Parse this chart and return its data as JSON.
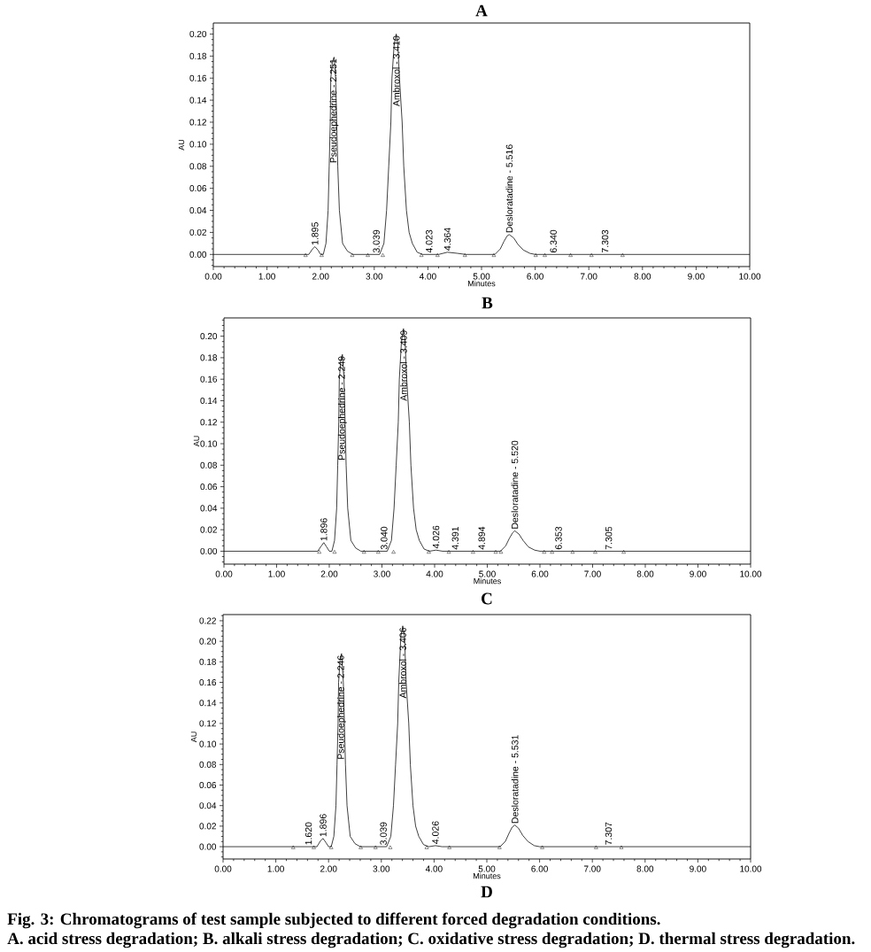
{
  "chart_data": [
    {
      "type": "line",
      "title": "A",
      "xlabel": "Minutes",
      "ylabel": "AU",
      "xlim": [
        0,
        10
      ],
      "ylim": [
        -0.011,
        0.21
      ],
      "xticks": [
        {
          "value": 0,
          "label": "0.00"
        },
        {
          "value": 0.2,
          "label": null
        },
        {
          "value": 0.4,
          "label": null
        },
        {
          "value": 0.6,
          "label": null
        },
        {
          "value": 0.8,
          "label": null
        },
        {
          "value": 1,
          "label": "1.00"
        },
        {
          "value": 1.2,
          "label": null
        },
        {
          "value": 1.4,
          "label": null
        },
        {
          "value": 1.6,
          "label": null
        },
        {
          "value": 1.8,
          "label": null
        },
        {
          "value": 2,
          "label": "2.00"
        },
        {
          "value": 2.2,
          "label": null
        },
        {
          "value": 2.4,
          "label": null
        },
        {
          "value": 2.6,
          "label": null
        },
        {
          "value": 2.8,
          "label": null
        },
        {
          "value": 3,
          "label": "3.00"
        },
        {
          "value": 3.2,
          "label": null
        },
        {
          "value": 3.4,
          "label": null
        },
        {
          "value": 3.6,
          "label": null
        },
        {
          "value": 3.8,
          "label": null
        },
        {
          "value": 4,
          "label": "4.00"
        },
        {
          "value": 4.2,
          "label": null
        },
        {
          "value": 4.4,
          "label": null
        },
        {
          "value": 4.6,
          "label": null
        },
        {
          "value": 4.8,
          "label": null
        },
        {
          "value": 5,
          "label": "5.00"
        },
        {
          "value": 5.2,
          "label": null
        },
        {
          "value": 5.4,
          "label": null
        },
        {
          "value": 5.6,
          "label": null
        },
        {
          "value": 5.8,
          "label": null
        },
        {
          "value": 6,
          "label": "6.00"
        },
        {
          "value": 6.2,
          "label": null
        },
        {
          "value": 6.4,
          "label": null
        },
        {
          "value": 6.6,
          "label": null
        },
        {
          "value": 6.8,
          "label": null
        },
        {
          "value": 7,
          "label": "7.00"
        },
        {
          "value": 7.2,
          "label": null
        },
        {
          "value": 7.4,
          "label": null
        },
        {
          "value": 7.6,
          "label": null
        },
        {
          "value": 7.8,
          "label": null
        },
        {
          "value": 8,
          "label": "8.00"
        },
        {
          "value": 8.2,
          "label": null
        },
        {
          "value": 8.4,
          "label": null
        },
        {
          "value": 8.6,
          "label": null
        },
        {
          "value": 8.8,
          "label": null
        },
        {
          "value": 9,
          "label": "9.00"
        },
        {
          "value": 9.2,
          "label": null
        },
        {
          "value": 9.4,
          "label": null
        },
        {
          "value": 9.6,
          "label": null
        },
        {
          "value": 9.8,
          "label": null
        },
        {
          "value": 10,
          "label": "10.00"
        }
      ],
      "yticks": [
        {
          "value": -0.01,
          "label": null
        },
        {
          "value": -0.005,
          "label": null
        },
        {
          "value": 0,
          "label": "0.00"
        },
        {
          "value": 0.005,
          "label": null
        },
        {
          "value": 0.01,
          "label": null
        },
        {
          "value": 0.015,
          "label": null
        },
        {
          "value": 0.02,
          "label": "0.02"
        },
        {
          "value": 0.025,
          "label": null
        },
        {
          "value": 0.03,
          "label": null
        },
        {
          "value": 0.035,
          "label": null
        },
        {
          "value": 0.04,
          "label": "0.04"
        },
        {
          "value": 0.045,
          "label": null
        },
        {
          "value": 0.05,
          "label": null
        },
        {
          "value": 0.055,
          "label": null
        },
        {
          "value": 0.06,
          "label": "0.06"
        },
        {
          "value": 0.065,
          "label": null
        },
        {
          "value": 0.07,
          "label": null
        },
        {
          "value": 0.075,
          "label": null
        },
        {
          "value": 0.08,
          "label": "0.08"
        },
        {
          "value": 0.085,
          "label": null
        },
        {
          "value": 0.09,
          "label": null
        },
        {
          "value": 0.095,
          "label": null
        },
        {
          "value": 0.1,
          "label": "0.10"
        },
        {
          "value": 0.105,
          "label": null
        },
        {
          "value": 0.11,
          "label": null
        },
        {
          "value": 0.115,
          "label": null
        },
        {
          "value": 0.12,
          "label": "0.12"
        },
        {
          "value": 0.125,
          "label": null
        },
        {
          "value": 0.13,
          "label": null
        },
        {
          "value": 0.135,
          "label": null
        },
        {
          "value": 0.14,
          "label": "0.14"
        },
        {
          "value": 0.145,
          "label": null
        },
        {
          "value": 0.15,
          "label": null
        },
        {
          "value": 0.155,
          "label": null
        },
        {
          "value": 0.16,
          "label": "0.16"
        },
        {
          "value": 0.165,
          "label": null
        },
        {
          "value": 0.17,
          "label": null
        },
        {
          "value": 0.175,
          "label": null
        },
        {
          "value": 0.18,
          "label": "0.18"
        },
        {
          "value": 0.185,
          "label": null
        },
        {
          "value": 0.19,
          "label": null
        },
        {
          "value": 0.195,
          "label": null
        },
        {
          "value": 0.2,
          "label": "0.20"
        },
        {
          "value": 0.205,
          "label": null
        }
      ],
      "series": [
        {
          "color": "#000000",
          "x": [
            0,
            1.78,
            1.85,
            1.895,
            1.95,
            2.0,
            2.05,
            2.1,
            2.14,
            2.16,
            2.18,
            2.19,
            2.22,
            2.251,
            2.28,
            2.3,
            2.32,
            2.35,
            2.41,
            2.5,
            2.6,
            3.039,
            3.1,
            3.18,
            3.23,
            3.27,
            3.31,
            3.33,
            3.37,
            3.41,
            3.44,
            3.47,
            3.52,
            3.55,
            3.6,
            3.65,
            3.71,
            3.8,
            3.9,
            4.023,
            4.2,
            4.364,
            4.55,
            4.7,
            5.25,
            5.35,
            5.42,
            5.48,
            5.516,
            5.6,
            5.68,
            5.78,
            5.9,
            6.0,
            6.34,
            7.303,
            10
          ],
          "values": [
            0,
            0,
            0.005,
            0.007,
            0.004,
            0,
            0,
            0.01,
            0.04,
            0.08,
            0.12,
            0.16,
            0.175,
            0.179,
            0.16,
            0.12,
            0.08,
            0.04,
            0.01,
            0.003,
            0,
            0,
            0,
            0.01,
            0.04,
            0.08,
            0.12,
            0.16,
            0.19,
            0.2,
            0.19,
            0.16,
            0.12,
            0.08,
            0.04,
            0.02,
            0.01,
            0.002,
            0,
            0,
            0,
            0.002,
            0.001,
            0,
            0,
            0.005,
            0.012,
            0.017,
            0.018,
            0.015,
            0.009,
            0.004,
            0.001,
            0,
            0,
            0,
            0
          ]
        },
        {
          "type": "scatter",
          "marker": "triangle",
          "color": "#000000",
          "x": [
            1.72,
            2.02,
            2.59,
            2.88,
            3.16,
            3.88,
            4.18,
            4.69,
            5.23,
            6.01,
            6.18,
            6.66,
            7.05,
            7.63
          ],
          "values": [
            -0.001,
            -0.001,
            -0.001,
            -0.001,
            -0.001,
            -0.001,
            -0.001,
            -0.001,
            -0.001,
            -0.001,
            -0.001,
            -0.001,
            -0.001,
            -0.001
          ]
        }
      ],
      "annotations": [
        {
          "text": "1.895",
          "x": 1.895,
          "y": 0.007
        },
        {
          "text": "Pseudoephedrine - 2.251",
          "x": 2.251,
          "y": 0.179
        },
        {
          "text": "3.039",
          "x": 3.039,
          "y": 0
        },
        {
          "text": "Ambroxol - 3.410",
          "x": 3.41,
          "y": 0.2
        },
        {
          "text": "4.023",
          "x": 4.023,
          "y": 0
        },
        {
          "text": "4.364",
          "x": 4.364,
          "y": 0.002
        },
        {
          "text": "Desloratadine - 5.516",
          "x": 5.516,
          "y": 0.018
        },
        {
          "text": "6.340",
          "x": 6.34,
          "y": 0
        },
        {
          "text": "7.303",
          "x": 7.303,
          "y": 0
        }
      ]
    },
    {
      "type": "line",
      "title": "B",
      "xlabel": "Minutes",
      "ylabel": "AU",
      "xlim": [
        0,
        10
      ],
      "ylim": [
        -0.012,
        0.217
      ],
      "xticks": [
        {
          "value": 0,
          "label": "0.00"
        },
        {
          "value": 0.2,
          "label": null
        },
        {
          "value": 0.4,
          "label": null
        },
        {
          "value": 0.6,
          "label": null
        },
        {
          "value": 0.8,
          "label": null
        },
        {
          "value": 1,
          "label": "1.00"
        },
        {
          "value": 1.2,
          "label": null
        },
        {
          "value": 1.4,
          "label": null
        },
        {
          "value": 1.6,
          "label": null
        },
        {
          "value": 1.8,
          "label": null
        },
        {
          "value": 2,
          "label": "2.00"
        },
        {
          "value": 2.2,
          "label": null
        },
        {
          "value": 2.4,
          "label": null
        },
        {
          "value": 2.6,
          "label": null
        },
        {
          "value": 2.8,
          "label": null
        },
        {
          "value": 3,
          "label": "3.00"
        },
        {
          "value": 3.2,
          "label": null
        },
        {
          "value": 3.4,
          "label": null
        },
        {
          "value": 3.6,
          "label": null
        },
        {
          "value": 3.8,
          "label": null
        },
        {
          "value": 4,
          "label": "4.00"
        },
        {
          "value": 4.2,
          "label": null
        },
        {
          "value": 4.4,
          "label": null
        },
        {
          "value": 4.6,
          "label": null
        },
        {
          "value": 4.8,
          "label": null
        },
        {
          "value": 5,
          "label": "5.00"
        },
        {
          "value": 5.2,
          "label": null
        },
        {
          "value": 5.4,
          "label": null
        },
        {
          "value": 5.6,
          "label": null
        },
        {
          "value": 5.8,
          "label": null
        },
        {
          "value": 6,
          "label": "6.00"
        },
        {
          "value": 6.2,
          "label": null
        },
        {
          "value": 6.4,
          "label": null
        },
        {
          "value": 6.6,
          "label": null
        },
        {
          "value": 6.8,
          "label": null
        },
        {
          "value": 7,
          "label": "7.00"
        },
        {
          "value": 7.2,
          "label": null
        },
        {
          "value": 7.4,
          "label": null
        },
        {
          "value": 7.6,
          "label": null
        },
        {
          "value": 7.8,
          "label": null
        },
        {
          "value": 8,
          "label": "8.00"
        },
        {
          "value": 8.2,
          "label": null
        },
        {
          "value": 8.4,
          "label": null
        },
        {
          "value": 8.6,
          "label": null
        },
        {
          "value": 8.8,
          "label": null
        },
        {
          "value": 9,
          "label": "9.00"
        },
        {
          "value": 9.2,
          "label": null
        },
        {
          "value": 9.4,
          "label": null
        },
        {
          "value": 9.6,
          "label": null
        },
        {
          "value": 9.8,
          "label": null
        },
        {
          "value": 10,
          "label": "10.00"
        }
      ],
      "yticks": [
        {
          "value": -0.01,
          "label": null
        },
        {
          "value": -0.005,
          "label": null
        },
        {
          "value": 0,
          "label": "0.00"
        },
        {
          "value": 0.005,
          "label": null
        },
        {
          "value": 0.01,
          "label": null
        },
        {
          "value": 0.015,
          "label": null
        },
        {
          "value": 0.02,
          "label": "0.02"
        },
        {
          "value": 0.025,
          "label": null
        },
        {
          "value": 0.03,
          "label": null
        },
        {
          "value": 0.035,
          "label": null
        },
        {
          "value": 0.04,
          "label": "0.04"
        },
        {
          "value": 0.045,
          "label": null
        },
        {
          "value": 0.05,
          "label": null
        },
        {
          "value": 0.055,
          "label": null
        },
        {
          "value": 0.06,
          "label": "0.06"
        },
        {
          "value": 0.065,
          "label": null
        },
        {
          "value": 0.07,
          "label": null
        },
        {
          "value": 0.075,
          "label": null
        },
        {
          "value": 0.08,
          "label": "0.08"
        },
        {
          "value": 0.085,
          "label": null
        },
        {
          "value": 0.09,
          "label": null
        },
        {
          "value": 0.095,
          "label": null
        },
        {
          "value": 0.1,
          "label": "0.10"
        },
        {
          "value": 0.105,
          "label": null
        },
        {
          "value": 0.11,
          "label": null
        },
        {
          "value": 0.115,
          "label": null
        },
        {
          "value": 0.12,
          "label": "0.12"
        },
        {
          "value": 0.125,
          "label": null
        },
        {
          "value": 0.13,
          "label": null
        },
        {
          "value": 0.135,
          "label": null
        },
        {
          "value": 0.14,
          "label": "0.14"
        },
        {
          "value": 0.145,
          "label": null
        },
        {
          "value": 0.15,
          "label": null
        },
        {
          "value": 0.155,
          "label": null
        },
        {
          "value": 0.16,
          "label": "0.16"
        },
        {
          "value": 0.165,
          "label": null
        },
        {
          "value": 0.17,
          "label": null
        },
        {
          "value": 0.175,
          "label": null
        },
        {
          "value": 0.18,
          "label": "0.18"
        },
        {
          "value": 0.185,
          "label": null
        },
        {
          "value": 0.19,
          "label": null
        },
        {
          "value": 0.195,
          "label": null
        },
        {
          "value": 0.2,
          "label": "0.20"
        },
        {
          "value": 0.205,
          "label": null
        },
        {
          "value": 0.21,
          "label": null
        },
        {
          "value": 0.215,
          "label": null
        }
      ],
      "series": [
        {
          "color": "#000000",
          "x": [
            0,
            1.78,
            1.85,
            1.896,
            1.95,
            2.0,
            2.05,
            2.1,
            2.14,
            2.16,
            2.18,
            2.19,
            2.22,
            2.249,
            2.28,
            2.3,
            2.32,
            2.35,
            2.41,
            2.5,
            2.6,
            3.04,
            3.1,
            3.18,
            3.23,
            3.27,
            3.31,
            3.33,
            3.37,
            3.409,
            3.44,
            3.47,
            3.52,
            3.55,
            3.6,
            3.65,
            3.71,
            3.8,
            3.9,
            4.026,
            4.15,
            4.391,
            4.894,
            5.25,
            5.35,
            5.42,
            5.48,
            5.52,
            5.6,
            5.68,
            5.78,
            5.9,
            6.0,
            6.353,
            7.305,
            10
          ],
          "values": [
            0,
            0,
            0.005,
            0.008,
            0.004,
            0,
            0,
            0.01,
            0.04,
            0.08,
            0.12,
            0.16,
            0.178,
            0.183,
            0.16,
            0.12,
            0.08,
            0.04,
            0.01,
            0.003,
            0,
            0,
            0,
            0.01,
            0.04,
            0.08,
            0.12,
            0.16,
            0.195,
            0.207,
            0.195,
            0.16,
            0.12,
            0.08,
            0.04,
            0.02,
            0.01,
            0.002,
            0,
            0.001,
            0,
            0,
            0,
            0,
            0.005,
            0.012,
            0.017,
            0.019,
            0.016,
            0.01,
            0.004,
            0.001,
            0,
            0,
            0,
            0
          ]
        },
        {
          "type": "scatter",
          "marker": "triangle",
          "color": "#000000",
          "x": [
            1.81,
            2.1,
            2.66,
            2.93,
            3.22,
            3.89,
            4.27,
            4.73,
            5.16,
            5.26,
            6.08,
            6.23,
            6.62,
            7.05,
            7.59
          ],
          "values": [
            -0.001,
            -0.001,
            -0.001,
            -0.001,
            -0.001,
            -0.001,
            -0.001,
            -0.001,
            -0.001,
            -0.001,
            -0.001,
            -0.001,
            -0.001,
            -0.001,
            -0.001
          ]
        }
      ],
      "annotations": [
        {
          "text": "1.896",
          "x": 1.896,
          "y": 0.008
        },
        {
          "text": "Pseudoephedrine - 2.249",
          "x": 2.249,
          "y": 0.183
        },
        {
          "text": "3.040",
          "x": 3.04,
          "y": 0
        },
        {
          "text": "Ambroxol - 3.409",
          "x": 3.409,
          "y": 0.207
        },
        {
          "text": "4.026",
          "x": 4.026,
          "y": 0.001
        },
        {
          "text": "4.391",
          "x": 4.391,
          "y": 0
        },
        {
          "text": "4.894",
          "x": 4.894,
          "y": 0
        },
        {
          "text": "Desloratadine - 5.520",
          "x": 5.52,
          "y": 0.019
        },
        {
          "text": "6.353",
          "x": 6.353,
          "y": 0
        },
        {
          "text": "7.305",
          "x": 7.305,
          "y": 0
        }
      ]
    },
    {
      "type": "line",
      "title": "C",
      "xlabel": "Minutes",
      "ylabel": "AU",
      "xlim": [
        0,
        10
      ],
      "ylim": [
        -0.012,
        0.226
      ],
      "xticks": [
        {
          "value": 0,
          "label": "0.00"
        },
        {
          "value": 0.2,
          "label": null
        },
        {
          "value": 0.4,
          "label": null
        },
        {
          "value": 0.6,
          "label": null
        },
        {
          "value": 0.8,
          "label": null
        },
        {
          "value": 1,
          "label": "1.00"
        },
        {
          "value": 1.2,
          "label": null
        },
        {
          "value": 1.4,
          "label": null
        },
        {
          "value": 1.6,
          "label": null
        },
        {
          "value": 1.8,
          "label": null
        },
        {
          "value": 2,
          "label": "2.00"
        },
        {
          "value": 2.2,
          "label": null
        },
        {
          "value": 2.4,
          "label": null
        },
        {
          "value": 2.6,
          "label": null
        },
        {
          "value": 2.8,
          "label": null
        },
        {
          "value": 3,
          "label": "3.00"
        },
        {
          "value": 3.2,
          "label": null
        },
        {
          "value": 3.4,
          "label": null
        },
        {
          "value": 3.6,
          "label": null
        },
        {
          "value": 3.8,
          "label": null
        },
        {
          "value": 4,
          "label": "4.00"
        },
        {
          "value": 4.2,
          "label": null
        },
        {
          "value": 4.4,
          "label": null
        },
        {
          "value": 4.6,
          "label": null
        },
        {
          "value": 4.8,
          "label": null
        },
        {
          "value": 5,
          "label": "5.00"
        },
        {
          "value": 5.2,
          "label": null
        },
        {
          "value": 5.4,
          "label": null
        },
        {
          "value": 5.6,
          "label": null
        },
        {
          "value": 5.8,
          "label": null
        },
        {
          "value": 6,
          "label": "6.00"
        },
        {
          "value": 6.2,
          "label": null
        },
        {
          "value": 6.4,
          "label": null
        },
        {
          "value": 6.6,
          "label": null
        },
        {
          "value": 6.8,
          "label": null
        },
        {
          "value": 7,
          "label": "7.00"
        },
        {
          "value": 7.2,
          "label": null
        },
        {
          "value": 7.4,
          "label": null
        },
        {
          "value": 7.6,
          "label": null
        },
        {
          "value": 7.8,
          "label": null
        },
        {
          "value": 8,
          "label": "8.00"
        },
        {
          "value": 8.2,
          "label": null
        },
        {
          "value": 8.4,
          "label": null
        },
        {
          "value": 8.6,
          "label": null
        },
        {
          "value": 8.8,
          "label": null
        },
        {
          "value": 9,
          "label": "9.00"
        },
        {
          "value": 9.2,
          "label": null
        },
        {
          "value": 9.4,
          "label": null
        },
        {
          "value": 9.6,
          "label": null
        },
        {
          "value": 9.8,
          "label": null
        },
        {
          "value": 10,
          "label": "10.00"
        }
      ],
      "yticks": [
        {
          "value": -0.01,
          "label": null
        },
        {
          "value": -0.005,
          "label": null
        },
        {
          "value": 0,
          "label": "0.00"
        },
        {
          "value": 0.005,
          "label": null
        },
        {
          "value": 0.01,
          "label": null
        },
        {
          "value": 0.015,
          "label": null
        },
        {
          "value": 0.02,
          "label": "0.02"
        },
        {
          "value": 0.025,
          "label": null
        },
        {
          "value": 0.03,
          "label": null
        },
        {
          "value": 0.035,
          "label": null
        },
        {
          "value": 0.04,
          "label": "0.04"
        },
        {
          "value": 0.045,
          "label": null
        },
        {
          "value": 0.05,
          "label": null
        },
        {
          "value": 0.055,
          "label": null
        },
        {
          "value": 0.06,
          "label": "0.06"
        },
        {
          "value": 0.065,
          "label": null
        },
        {
          "value": 0.07,
          "label": null
        },
        {
          "value": 0.075,
          "label": null
        },
        {
          "value": 0.08,
          "label": "0.08"
        },
        {
          "value": 0.085,
          "label": null
        },
        {
          "value": 0.09,
          "label": null
        },
        {
          "value": 0.095,
          "label": null
        },
        {
          "value": 0.1,
          "label": "0.10"
        },
        {
          "value": 0.105,
          "label": null
        },
        {
          "value": 0.11,
          "label": null
        },
        {
          "value": 0.115,
          "label": null
        },
        {
          "value": 0.12,
          "label": "0.12"
        },
        {
          "value": 0.125,
          "label": null
        },
        {
          "value": 0.13,
          "label": null
        },
        {
          "value": 0.135,
          "label": null
        },
        {
          "value": 0.14,
          "label": "0.14"
        },
        {
          "value": 0.145,
          "label": null
        },
        {
          "value": 0.15,
          "label": null
        },
        {
          "value": 0.155,
          "label": null
        },
        {
          "value": 0.16,
          "label": "0.16"
        },
        {
          "value": 0.165,
          "label": null
        },
        {
          "value": 0.17,
          "label": null
        },
        {
          "value": 0.175,
          "label": null
        },
        {
          "value": 0.18,
          "label": "0.18"
        },
        {
          "value": 0.185,
          "label": null
        },
        {
          "value": 0.19,
          "label": null
        },
        {
          "value": 0.195,
          "label": null
        },
        {
          "value": 0.2,
          "label": "0.20"
        },
        {
          "value": 0.205,
          "label": null
        },
        {
          "value": 0.21,
          "label": null
        },
        {
          "value": 0.215,
          "label": null
        },
        {
          "value": 0.22,
          "label": "0.22"
        },
        {
          "value": 0.225,
          "label": null
        }
      ],
      "series": [
        {
          "color": "#000000",
          "x": [
            0,
            1.62,
            1.78,
            1.85,
            1.896,
            1.95,
            2.0,
            2.05,
            2.1,
            2.14,
            2.16,
            2.18,
            2.19,
            2.22,
            2.246,
            2.28,
            2.3,
            2.32,
            2.35,
            2.41,
            2.5,
            2.6,
            3.039,
            3.1,
            3.18,
            3.23,
            3.27,
            3.31,
            3.33,
            3.37,
            3.406,
            3.44,
            3.47,
            3.52,
            3.55,
            3.6,
            3.65,
            3.71,
            3.8,
            3.9,
            4.026,
            4.15,
            5.25,
            5.35,
            5.42,
            5.48,
            5.531,
            5.6,
            5.68,
            5.78,
            5.9,
            6.0,
            7.307,
            10
          ],
          "values": [
            0,
            0,
            0,
            0.006,
            0.008,
            0.004,
            0,
            0,
            0.01,
            0.04,
            0.08,
            0.12,
            0.16,
            0.183,
            0.188,
            0.16,
            0.12,
            0.08,
            0.04,
            0.01,
            0.003,
            0,
            0,
            0,
            0.01,
            0.04,
            0.08,
            0.12,
            0.16,
            0.205,
            0.215,
            0.205,
            0.16,
            0.12,
            0.08,
            0.04,
            0.02,
            0.01,
            0.002,
            0,
            0.001,
            0,
            0,
            0.005,
            0.013,
            0.019,
            0.021,
            0.018,
            0.011,
            0.005,
            0.001,
            0,
            0,
            0
          ]
        },
        {
          "type": "scatter",
          "marker": "triangle",
          "color": "#000000",
          "x": [
            1.33,
            1.72,
            2.05,
            2.61,
            2.89,
            3.17,
            3.86,
            4.29,
            5.24,
            6.05,
            7.07,
            7.55
          ],
          "values": [
            -0.001,
            -0.001,
            -0.001,
            -0.001,
            -0.001,
            -0.001,
            -0.001,
            -0.001,
            -0.001,
            -0.001,
            -0.001,
            -0.001
          ]
        }
      ],
      "annotations": [
        {
          "text": "1.620",
          "x": 1.62,
          "y": 0
        },
        {
          "text": "1.896",
          "x": 1.896,
          "y": 0.008
        },
        {
          "text": "Pseudoephedrine - 2.246",
          "x": 2.246,
          "y": 0.188
        },
        {
          "text": "3.039",
          "x": 3.039,
          "y": 0
        },
        {
          "text": "Ambroxol - 3.406",
          "x": 3.406,
          "y": 0.215
        },
        {
          "text": "4.026",
          "x": 4.026,
          "y": 0.001
        },
        {
          "text": "Desloratadine - 5.531",
          "x": 5.531,
          "y": 0.021
        },
        {
          "text": "7.307",
          "x": 7.307,
          "y": 0
        },
        "D",
        "Fig. 3: Chromatograms of test sample subjected to different forced degradation conditions.",
        "A. acid stress degradation; B. alkali stress degradation; C. oxidative stress degradation; D. thermal stress degradation."
      ]
    }
  ]
}
